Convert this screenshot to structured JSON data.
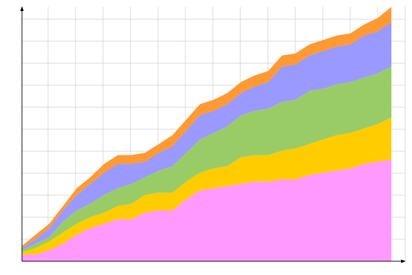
{
  "chart_data": {
    "type": "area",
    "stacked": true,
    "title": "",
    "xlabel": "",
    "ylabel": "",
    "x": [
      0,
      1,
      2,
      3,
      4,
      5,
      6,
      7,
      8,
      9,
      10,
      11,
      12,
      13,
      14,
      15,
      16,
      17,
      18,
      19,
      20,
      21,
      22,
      23,
      24,
      25,
      26,
      27
    ],
    "xlim": [
      0,
      27
    ],
    "ylim": [
      0,
      11.5
    ],
    "grid": true,
    "tick_labels_shown": false,
    "legend": "none",
    "series": [
      {
        "color": "#ff99ff",
        "values": [
          0.3,
          0.3,
          0.5,
          0.8,
          1.2,
          1.5,
          1.7,
          1.9,
          1.9,
          2.2,
          2.3,
          2.3,
          2.8,
          3.2,
          3.3,
          3.4,
          3.5,
          3.6,
          3.6,
          3.7,
          3.7,
          3.9,
          4.0,
          4.1,
          4.2,
          4.4,
          4.5,
          4.6
        ]
      },
      {
        "color": "#ffcc00",
        "values": [
          0.1,
          0.3,
          0.4,
          0.5,
          0.5,
          0.5,
          0.5,
          0.6,
          0.7,
          0.8,
          0.8,
          0.8,
          0.8,
          0.8,
          0.9,
          0.9,
          1.2,
          1.2,
          1.2,
          1.3,
          1.4,
          1.4,
          1.5,
          1.6,
          1.6,
          1.6,
          1.7,
          1.9
        ]
      },
      {
        "color": "#99cc66",
        "values": [
          0.1,
          0.2,
          0.2,
          0.5,
          0.6,
          0.6,
          0.8,
          0.8,
          0.9,
          0.8,
          1.0,
          1.2,
          1.3,
          1.5,
          1.6,
          1.8,
          1.9,
          2.0,
          2.1,
          2.2,
          2.2,
          2.4,
          2.3,
          2.3,
          2.3,
          2.3,
          2.3,
          2.3
        ]
      },
      {
        "color": "#9999ff",
        "values": [
          0.1,
          0.2,
          0.4,
          0.5,
          0.7,
          0.9,
          1.0,
          1.1,
          0.9,
          0.7,
          0.8,
          0.9,
          1.0,
          1.1,
          1.0,
          1.0,
          1.0,
          1.1,
          1.2,
          1.6,
          1.6,
          1.6,
          1.7,
          1.7,
          1.7,
          1.9,
          1.9,
          2.0
        ]
      },
      {
        "color": "#ff9933",
        "values": [
          0.1,
          0.2,
          0.2,
          0.2,
          0.3,
          0.3,
          0.4,
          0.4,
          0.4,
          0.4,
          0.4,
          0.5,
          0.5,
          0.5,
          0.5,
          0.5,
          0.5,
          0.5,
          0.5,
          0.5,
          0.5,
          0.5,
          0.5,
          0.5,
          0.5,
          0.5,
          0.6,
          0.7
        ]
      }
    ]
  }
}
